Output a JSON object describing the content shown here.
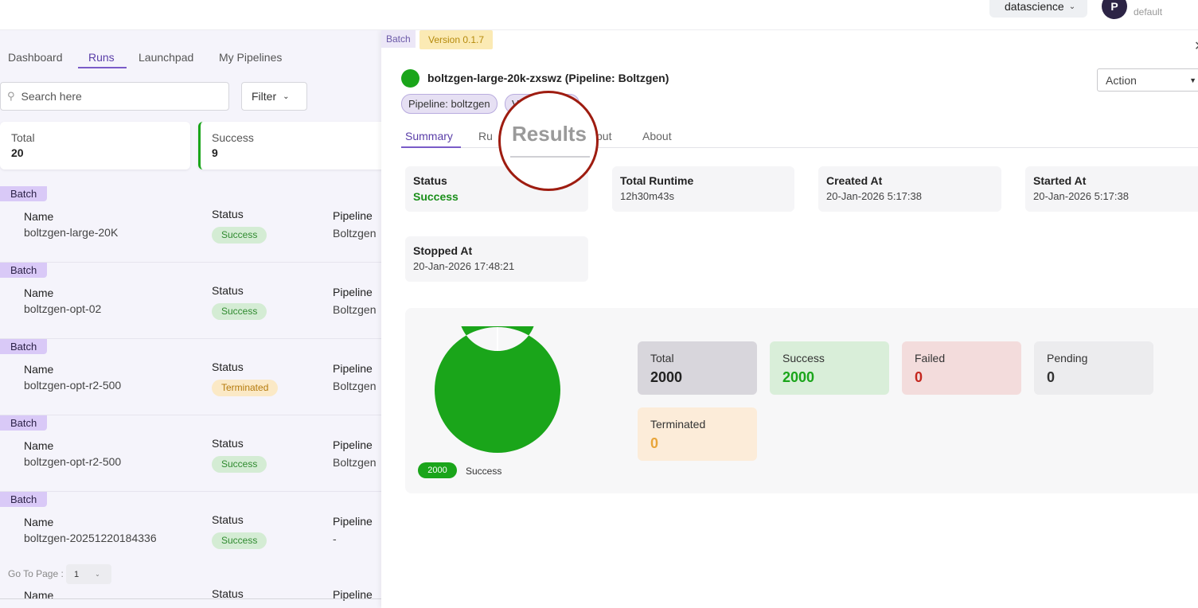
{
  "header": {
    "workspace": "datascience",
    "avatar_initial": "P",
    "user_sub": "default"
  },
  "nav": {
    "tabs": [
      {
        "label": "Dashboard"
      },
      {
        "label": "Runs"
      },
      {
        "label": "Launchpad"
      },
      {
        "label": "My Pipelines"
      }
    ],
    "active": "Runs"
  },
  "search": {
    "placeholder": "Search here"
  },
  "filter": {
    "label": "Filter"
  },
  "stats": {
    "total": {
      "label": "Total",
      "value": "20"
    },
    "success": {
      "label": "Success",
      "value": "9"
    }
  },
  "columns": {
    "name": "Name",
    "status": "Status",
    "pipeline": "Pipeline"
  },
  "runs": [
    {
      "tag": "Batch",
      "name": "boltzgen-large-20K",
      "status": "Success",
      "pipeline": "Boltzgen"
    },
    {
      "tag": "Batch",
      "name": "boltzgen-opt-02",
      "status": "Success",
      "pipeline": "Boltzgen"
    },
    {
      "tag": "Batch",
      "name": "boltzgen-opt-r2-500",
      "status": "Terminated",
      "pipeline": "Boltzgen"
    },
    {
      "tag": "Batch",
      "name": "boltzgen-opt-r2-500",
      "status": "Success",
      "pipeline": "Boltzgen"
    },
    {
      "tag": "Batch",
      "name": "boltzgen-20251220184336",
      "status": "Success",
      "pipeline": "-"
    }
  ],
  "pagination": {
    "label": "Go To Page :",
    "page": "1"
  },
  "detail": {
    "tag": "Batch",
    "version": "Version 0.1.7",
    "title": "boltzgen-large-20k-zxswz  (Pipeline: Boltzgen)",
    "chips": [
      "Pipeline: boltzgen",
      "V"
    ],
    "action": "Action",
    "tabs": [
      {
        "label": "Summary"
      },
      {
        "label": "Ru"
      },
      {
        "label": "put"
      },
      {
        "label": "About"
      }
    ],
    "info": [
      {
        "title": "Status",
        "value": "Success"
      },
      {
        "title": "Total Runtime",
        "value": "12h30m43s"
      },
      {
        "title": "Created At",
        "value": "20-Jan-2026 5:17:38"
      },
      {
        "title": "Started At",
        "value": "20-Jan-2026 5:17:38"
      },
      {
        "title": "Stopped At",
        "value": "20-Jan-2026 17:48:21"
      }
    ],
    "counts": [
      {
        "label": "Total",
        "value": "2000",
        "bg": "#d8d6dc",
        "color": "#222222"
      },
      {
        "label": "Success",
        "value": "2000",
        "bg": "#d9eed9",
        "color": "#1aa51a"
      },
      {
        "label": "Failed",
        "value": "0",
        "bg": "#f3dcdc",
        "color": "#c4261e"
      },
      {
        "label": "Pending",
        "value": "0",
        "bg": "#ececee",
        "color": "#333333"
      },
      {
        "label": "Terminated",
        "value": "0",
        "bg": "#fcecd9",
        "color": "#e8a53a"
      }
    ],
    "legend": {
      "value": "2000",
      "label": "Success"
    },
    "magnifier_text": "Results"
  },
  "chart_data": {
    "type": "pie",
    "categories": [
      "Success"
    ],
    "values": [
      2000
    ],
    "colors": [
      "#1aa51a"
    ]
  }
}
